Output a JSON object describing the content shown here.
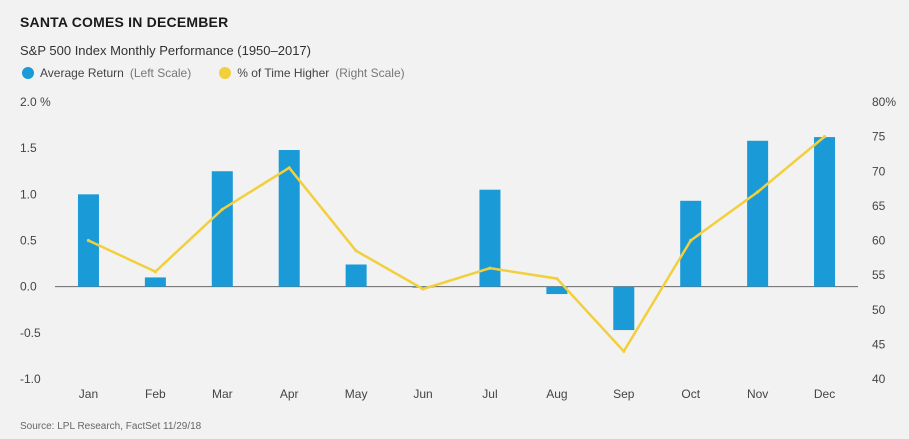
{
  "title": "SANTA COMES IN DECEMBER",
  "subtitle": "S&P 500 Index Monthly Performance (1950–2017)",
  "source": "Source: LPL Research, FactSet 11/29/18",
  "colors": {
    "bar": "#1a9ad6",
    "line": "#f2cf3d",
    "axis": "#555555",
    "text": "#444444"
  },
  "legend": [
    {
      "label": "Average Return",
      "scale_note": "(Left Scale)",
      "color": "#1a9ad6"
    },
    {
      "label": "% of Time Higher",
      "scale_note": "(Right Scale)",
      "color": "#f2cf3d"
    }
  ],
  "chart_data": {
    "type": "bar+line",
    "categories": [
      "Jan",
      "Feb",
      "Mar",
      "Apr",
      "May",
      "Jun",
      "Jul",
      "Aug",
      "Sep",
      "Oct",
      "Nov",
      "Dec"
    ],
    "series": [
      {
        "name": "Average Return",
        "type": "bar",
        "axis": "left",
        "values": [
          1.0,
          0.1,
          1.25,
          1.48,
          0.24,
          0.0,
          1.05,
          -0.08,
          -0.47,
          0.93,
          1.58,
          1.62
        ]
      },
      {
        "name": "% of Time Higher",
        "type": "line",
        "axis": "right",
        "values": [
          60,
          55.5,
          64.5,
          70.5,
          58.5,
          53,
          56,
          54.5,
          44,
          60,
          67,
          75
        ]
      }
    ],
    "left_axis": {
      "ylim": [
        -1.0,
        2.0
      ],
      "ticks": [
        "2.0 %",
        "1.5",
        "1.0",
        "0.5",
        "0.0",
        "-0.5",
        "-1.0"
      ],
      "tick_values": [
        2.0,
        1.5,
        1.0,
        0.5,
        0.0,
        -0.5,
        -1.0
      ]
    },
    "right_axis": {
      "ylim": [
        40,
        80
      ],
      "ticks": [
        "80%",
        "75",
        "70",
        "65",
        "60",
        "55",
        "50",
        "45",
        "40"
      ],
      "tick_values": [
        80,
        75,
        70,
        65,
        60,
        55,
        50,
        45,
        40
      ]
    }
  }
}
